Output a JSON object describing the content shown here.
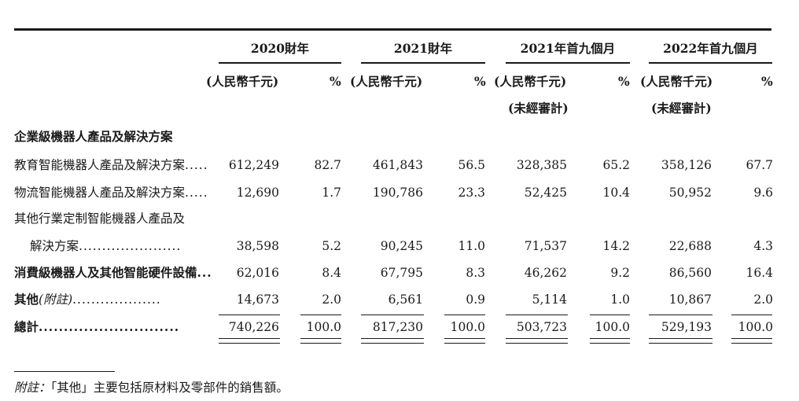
{
  "periods": [
    {
      "label": "2020財年",
      "cur": "(人民幣千元)",
      "pct": "%",
      "sub": ""
    },
    {
      "label": "2021財年",
      "cur": "(人民幣千元)",
      "pct": "%",
      "sub": ""
    },
    {
      "label": "2021年首九個月",
      "cur": "(人民幣千元)",
      "pct": "%",
      "sub": "(未經審計)"
    },
    {
      "label": "2022年首九個月",
      "cur": "(人民幣千元)",
      "pct": "%",
      "sub": "(未經審計)"
    }
  ],
  "section_heading": "企業級機器人產品及解決方案",
  "rows": [
    {
      "label": "教育智能機器人產品及解決方案",
      "dots": ".....",
      "values": [
        "612,249",
        "82.7",
        "461,843",
        "56.5",
        "328,385",
        "65.2",
        "358,126",
        "67.7"
      ]
    },
    {
      "label": "物流智能機器人產品及解決方案",
      "dots": ".....",
      "values": [
        "12,690",
        "1.7",
        "190,786",
        "23.3",
        "52,425",
        "10.4",
        "50,952",
        "9.6"
      ]
    },
    {
      "label": "其他行業定制智能機器人產品及",
      "label2": "解決方案",
      "dots": "......................",
      "values": [
        "38,598",
        "5.2",
        "90,245",
        "11.0",
        "71,537",
        "14.2",
        "22,688",
        "4.3"
      ]
    },
    {
      "label": "消費級機器人及其他智能硬件設備",
      "dots": "...",
      "values": [
        "62,016",
        "8.4",
        "67,795",
        "8.3",
        "46,262",
        "9.2",
        "86,560",
        "16.4"
      ]
    },
    {
      "label": "其他",
      "label_note": "(附註)",
      "dots": "...................",
      "values": [
        "14,673",
        "2.0",
        "6,561",
        "0.9",
        "5,114",
        "1.0",
        "10,867",
        "2.0"
      ]
    },
    {
      "label": "總計",
      "dots": "............................",
      "values": [
        "740,226",
        "100.0",
        "817,230",
        "100.0",
        "503,723",
        "100.0",
        "529,193",
        "100.0"
      ]
    }
  ],
  "footnote": {
    "prefix": "附註：",
    "text": "「其他」主要包括原材料及零部件的銷售額。"
  }
}
